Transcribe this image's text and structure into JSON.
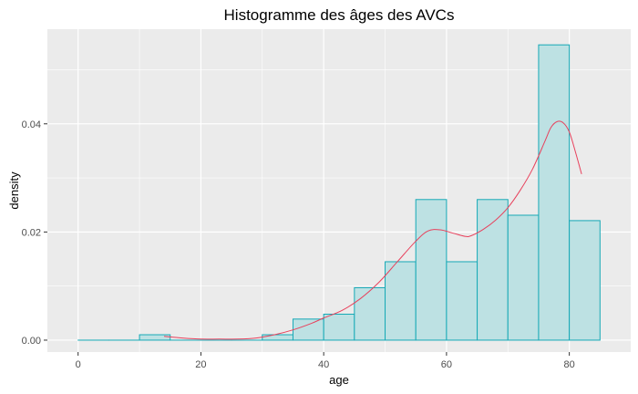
{
  "chart_data": {
    "type": "bar",
    "title": "Histogramme des âges des AVCs",
    "xlabel": "age",
    "ylabel": "density",
    "xlim": [
      -5,
      90
    ],
    "ylim": [
      -0.0022,
      0.0575
    ],
    "x_ticks": [
      0,
      20,
      40,
      60,
      80
    ],
    "x_tick_labels": [
      "0",
      "20",
      "40",
      "60",
      "80"
    ],
    "y_ticks": [
      0.0,
      0.02,
      0.04
    ],
    "y_tick_labels": [
      "0.00",
      "0.02",
      "0.04"
    ],
    "bin_width": 5,
    "bins": [
      {
        "start": 0,
        "end": 5,
        "density": 0.0
      },
      {
        "start": 5,
        "end": 10,
        "density": 0.0
      },
      {
        "start": 10,
        "end": 15,
        "density": 0.001
      },
      {
        "start": 15,
        "end": 20,
        "density": 0.0
      },
      {
        "start": 20,
        "end": 25,
        "density": 0.0
      },
      {
        "start": 25,
        "end": 30,
        "density": 0.0
      },
      {
        "start": 30,
        "end": 35,
        "density": 0.001
      },
      {
        "start": 35,
        "end": 40,
        "density": 0.0039
      },
      {
        "start": 40,
        "end": 45,
        "density": 0.0048
      },
      {
        "start": 45,
        "end": 50,
        "density": 0.0097
      },
      {
        "start": 50,
        "end": 55,
        "density": 0.0145
      },
      {
        "start": 55,
        "end": 60,
        "density": 0.026
      },
      {
        "start": 60,
        "end": 65,
        "density": 0.0145
      },
      {
        "start": 65,
        "end": 70,
        "density": 0.026
      },
      {
        "start": 70,
        "end": 75,
        "density": 0.0231
      },
      {
        "start": 75,
        "end": 80,
        "density": 0.0546
      },
      {
        "start": 80,
        "end": 85,
        "density": 0.0221
      }
    ],
    "density_curve": {
      "x": [
        14,
        17,
        20,
        23,
        26,
        29,
        32,
        35,
        38,
        40,
        43,
        46,
        49,
        52,
        55,
        57,
        59,
        61,
        63,
        64,
        66,
        68,
        70,
        72,
        74,
        76,
        77,
        78,
        79,
        80,
        81,
        82
      ],
      "y": [
        0.0007,
        0.0004,
        0.0002,
        0.0002,
        0.0002,
        0.0004,
        0.001,
        0.0019,
        0.0031,
        0.0041,
        0.0055,
        0.0077,
        0.0107,
        0.0145,
        0.0183,
        0.0202,
        0.0204,
        0.0198,
        0.0192,
        0.0193,
        0.0205,
        0.0222,
        0.0245,
        0.0277,
        0.0316,
        0.0367,
        0.0393,
        0.0404,
        0.0402,
        0.0385,
        0.0348,
        0.0307
      ]
    },
    "grid": true,
    "legend": "none",
    "colors": {
      "panel_background": "#ebebeb",
      "grid_major": "#ffffff",
      "bar_fill": "#bde1e3",
      "bar_outline": "#16a9b6",
      "density_line": "#e8415c"
    }
  }
}
